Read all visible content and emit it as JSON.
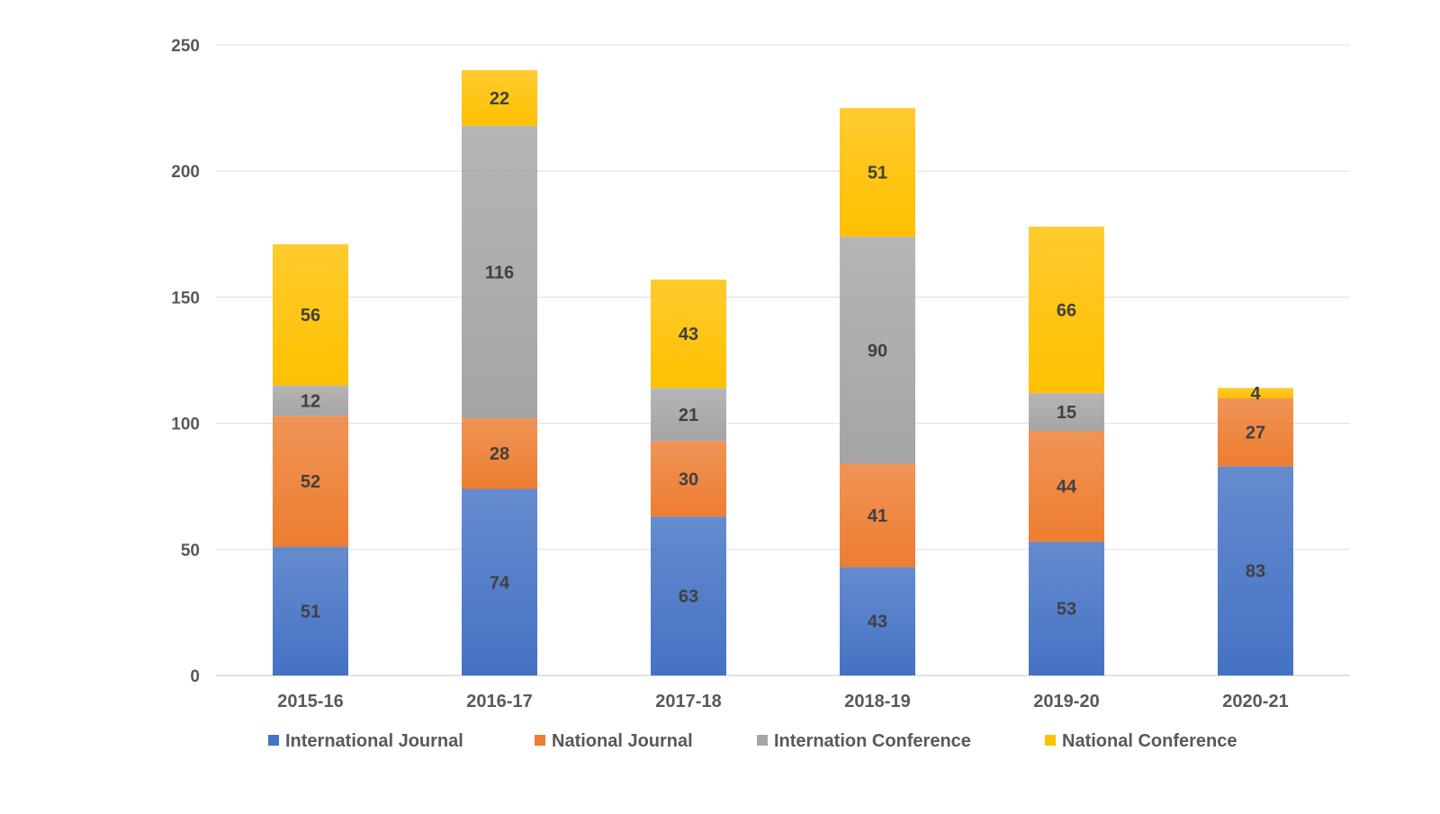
{
  "chart_data": {
    "type": "bar",
    "stacked": true,
    "categories": [
      "2015-16",
      "2016-17",
      "2017-18",
      "2018-19",
      "2019-20",
      "2020-21"
    ],
    "series": [
      {
        "name": "International Journal",
        "values": [
          51,
          74,
          63,
          43,
          53,
          83
        ],
        "color": "#4472C4"
      },
      {
        "name": "National Journal",
        "values": [
          52,
          28,
          30,
          41,
          44,
          27
        ],
        "color": "#ED7D31"
      },
      {
        "name": "Internation Conference",
        "values": [
          12,
          116,
          21,
          90,
          15,
          0
        ],
        "color": "#A5A5A5"
      },
      {
        "name": "National Conference",
        "values": [
          56,
          22,
          43,
          51,
          66,
          4
        ],
        "color": "#FFC000"
      }
    ],
    "data_labels": [
      [
        "51",
        "74",
        "63",
        "43",
        "53",
        "83"
      ],
      [
        "52",
        "28",
        "30",
        "41",
        "44",
        "27"
      ],
      [
        "12",
        "116",
        "21",
        "90",
        "15",
        ""
      ],
      [
        "56",
        "22",
        "43",
        "51",
        "66",
        "4"
      ]
    ],
    "yticks": [
      "0",
      "50",
      "100",
      "150",
      "200",
      "250"
    ],
    "ylim": [
      0,
      250
    ],
    "grid": true,
    "legend_position": "bottom",
    "title": "",
    "xlabel": "",
    "ylabel": ""
  }
}
